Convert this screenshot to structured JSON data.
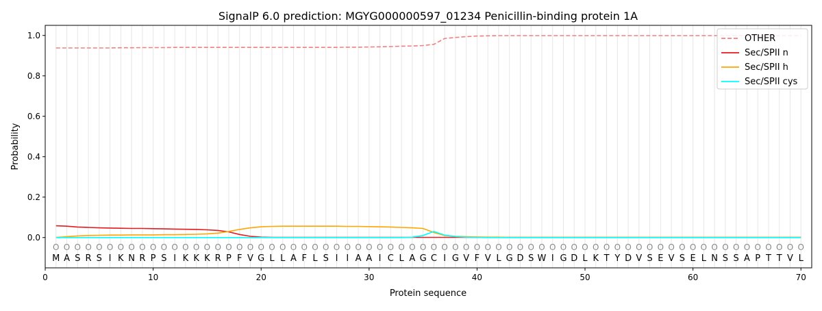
{
  "chart_data": {
    "type": "line",
    "title": "SignalP 6.0 prediction: MGYG000000597_01234 Penicillin-binding protein 1A",
    "xlabel": "Protein sequence",
    "ylabel": "Probability",
    "xlim": [
      0,
      71
    ],
    "ylim": [
      -0.15,
      1.05
    ],
    "grid": "vertical lines at each residue",
    "legend_position": "top-right",
    "x_ticks": [
      0,
      10,
      20,
      30,
      40,
      50,
      60,
      70
    ],
    "y_ticks": [
      0.0,
      0.2,
      0.4,
      0.6,
      0.8,
      1.0
    ],
    "x_tick_labels": [
      "0",
      "10",
      "20",
      "30",
      "40",
      "50",
      "60",
      "70"
    ],
    "y_tick_labels": [
      "0.0",
      "0.2",
      "0.4",
      "0.6",
      "0.8",
      "1.0"
    ],
    "sequence": [
      "M",
      "A",
      "S",
      "R",
      "S",
      "I",
      "K",
      "N",
      "R",
      "P",
      "S",
      "I",
      "K",
      "K",
      "K",
      "R",
      "P",
      "F",
      "V",
      "G",
      "L",
      "L",
      "A",
      "F",
      "L",
      "S",
      "I",
      "I",
      "A",
      "A",
      "I",
      "C",
      "L",
      "A",
      "G",
      "C",
      "I",
      "G",
      "V",
      "F",
      "V",
      "L",
      "G",
      "D",
      "S",
      "W",
      "I",
      "G",
      "D",
      "L",
      "K",
      "T",
      "Y",
      "D",
      "V",
      "S",
      "E",
      "V",
      "S",
      "E",
      "L",
      "N",
      "S",
      "S",
      "A",
      "P",
      "T",
      "T",
      "V",
      "L"
    ],
    "region_labels": [
      "O",
      "O",
      "O",
      "O",
      "O",
      "O",
      "O",
      "O",
      "O",
      "O",
      "O",
      "O",
      "O",
      "O",
      "O",
      "O",
      "O",
      "O",
      "O",
      "O",
      "O",
      "O",
      "O",
      "O",
      "O",
      "O",
      "O",
      "O",
      "O",
      "O",
      "O",
      "O",
      "O",
      "O",
      "O",
      "O",
      "O",
      "O",
      "O",
      "O",
      "O",
      "O",
      "O",
      "O",
      "O",
      "O",
      "O",
      "O",
      "O",
      "O",
      "O",
      "O",
      "O",
      "O",
      "O",
      "O",
      "O",
      "O",
      "O",
      "O",
      "O",
      "O",
      "O",
      "O",
      "O",
      "O",
      "O",
      "O",
      "O",
      "O"
    ],
    "series": [
      {
        "name": "OTHER",
        "color": "#f08080",
        "dash": "dashed",
        "values": [
          0.938,
          0.938,
          0.938,
          0.938,
          0.938,
          0.938,
          0.939,
          0.939,
          0.94,
          0.94,
          0.94,
          0.941,
          0.941,
          0.941,
          0.941,
          0.941,
          0.941,
          0.941,
          0.941,
          0.941,
          0.941,
          0.941,
          0.941,
          0.941,
          0.941,
          0.941,
          0.941,
          0.942,
          0.942,
          0.943,
          0.944,
          0.945,
          0.947,
          0.948,
          0.95,
          0.956,
          0.985,
          0.99,
          0.994,
          0.997,
          0.998,
          0.999,
          0.999,
          0.999,
          0.999,
          0.999,
          0.999,
          0.999,
          0.999,
          0.999,
          0.999,
          0.999,
          0.999,
          0.999,
          0.999,
          0.999,
          0.999,
          0.999,
          0.999,
          0.999,
          0.999,
          0.999,
          0.999,
          0.999,
          0.999,
          0.999,
          0.999,
          0.999,
          0.999,
          0.999
        ]
      },
      {
        "name": "Sec/SPII n",
        "color": "#e41a1c",
        "dash": "solid",
        "values": [
          0.058,
          0.056,
          0.052,
          0.05,
          0.048,
          0.047,
          0.046,
          0.045,
          0.045,
          0.044,
          0.043,
          0.042,
          0.041,
          0.04,
          0.038,
          0.035,
          0.028,
          0.015,
          0.006,
          0.002,
          0.001,
          0.001,
          0.001,
          0.001,
          0.001,
          0.001,
          0.001,
          0.001,
          0.001,
          0.001,
          0.001,
          0.001,
          0.001,
          0.001,
          0.001,
          0.001,
          0.001,
          0.001,
          0.001,
          0.001,
          0.001,
          0.001,
          0.001,
          0.001,
          0.001,
          0.001,
          0.001,
          0.001,
          0.001,
          0.001,
          0.001,
          0.001,
          0.001,
          0.001,
          0.001,
          0.001,
          0.001,
          0.001,
          0.001,
          0.001,
          0.001,
          0.001,
          0.001,
          0.001,
          0.001,
          0.001,
          0.001,
          0.001,
          0.001,
          0.001
        ]
      },
      {
        "name": "Sec/SPII h",
        "color": "#ffa500",
        "dash": "solid",
        "values": [
          0.001,
          0.004,
          0.008,
          0.01,
          0.011,
          0.012,
          0.012,
          0.013,
          0.013,
          0.013,
          0.014,
          0.014,
          0.015,
          0.016,
          0.018,
          0.022,
          0.03,
          0.04,
          0.048,
          0.053,
          0.055,
          0.056,
          0.056,
          0.056,
          0.056,
          0.056,
          0.056,
          0.055,
          0.055,
          0.054,
          0.053,
          0.052,
          0.05,
          0.048,
          0.045,
          0.025,
          0.01,
          0.006,
          0.004,
          0.003,
          0.002,
          0.002,
          0.001,
          0.001,
          0.001,
          0.001,
          0.001,
          0.001,
          0.001,
          0.001,
          0.001,
          0.001,
          0.001,
          0.001,
          0.001,
          0.001,
          0.001,
          0.001,
          0.001,
          0.001,
          0.001,
          0.001,
          0.001,
          0.001,
          0.001,
          0.001,
          0.001,
          0.001,
          0.001,
          0.001
        ]
      },
      {
        "name": "Sec/SPII cys",
        "color": "#00ffff",
        "dash": "solid",
        "values": [
          0.0,
          0.0,
          0.0,
          0.0,
          0.0,
          0.0,
          0.0,
          0.0,
          0.0,
          0.0,
          0.0,
          0.0,
          0.0,
          0.0,
          0.0,
          0.0,
          0.0,
          0.0,
          0.0,
          0.0,
          0.0,
          0.0,
          0.0,
          0.0,
          0.0,
          0.0,
          0.0,
          0.0,
          0.0,
          0.0,
          0.0,
          0.0,
          0.0,
          0.002,
          0.01,
          0.03,
          0.012,
          0.005,
          0.002,
          0.001,
          0.0,
          0.0,
          0.0,
          0.0,
          0.0,
          0.0,
          0.0,
          0.0,
          0.0,
          0.0,
          0.0,
          0.0,
          0.0,
          0.0,
          0.0,
          0.0,
          0.0,
          0.0,
          0.0,
          0.0,
          0.0,
          0.0,
          0.0,
          0.0,
          0.0,
          0.0,
          0.0,
          0.0,
          0.0,
          0.0
        ]
      }
    ]
  }
}
